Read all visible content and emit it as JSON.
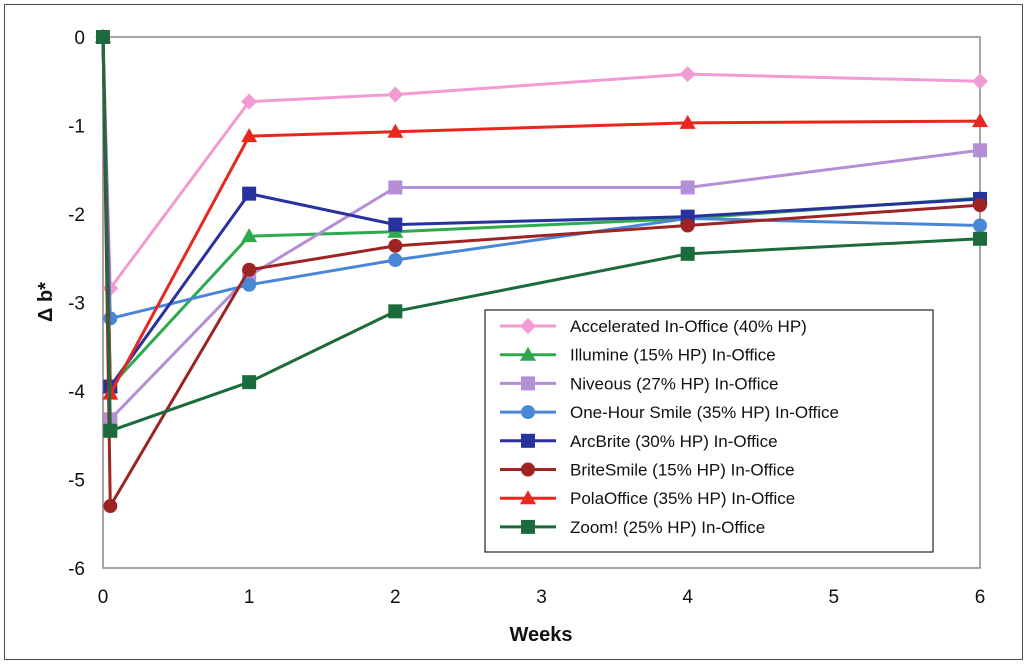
{
  "chart_data": {
    "type": "line",
    "xlabel": "Weeks",
    "ylabel": "Δ b*",
    "ylim": [
      -6,
      0
    ],
    "xlim": [
      0,
      6
    ],
    "x_ticks": [
      "0",
      "1",
      "2",
      "3",
      "4",
      "5",
      "6"
    ],
    "y_ticks": [
      "0",
      "-1",
      "-2",
      "-3",
      "-4",
      "-5",
      "-6"
    ],
    "grid": false,
    "legend_position": "lower-right",
    "series": [
      {
        "name": "Accelerated In-Office (40% HP)",
        "color": "#f29ad2",
        "marker": "diamond",
        "points": [
          [
            0,
            0
          ],
          [
            0.05,
            -2.84
          ],
          [
            1,
            -0.73
          ],
          [
            2,
            -0.65
          ],
          [
            4,
            -0.42
          ],
          [
            6,
            -0.5
          ]
        ]
      },
      {
        "name": "Illumine (15% HP) In-Office",
        "color": "#2eaa4e",
        "marker": "triangle",
        "points": [
          [
            0,
            0
          ],
          [
            0.05,
            -3.95
          ],
          [
            1,
            -2.25
          ],
          [
            2,
            -2.2
          ],
          [
            4,
            -2.05
          ],
          [
            6,
            -1.82
          ]
        ]
      },
      {
        "name": "Niveous (27% HP) In-Office",
        "color": "#b48ed6",
        "marker": "square",
        "points": [
          [
            0,
            0
          ],
          [
            0.05,
            -4.32
          ],
          [
            1,
            -2.7
          ],
          [
            2,
            -1.7
          ],
          [
            4,
            -1.7
          ],
          [
            6,
            -1.28
          ]
        ]
      },
      {
        "name": "One-Hour Smile (35% HP) In-Office",
        "color": "#4a86d6",
        "marker": "circle",
        "points": [
          [
            0,
            0
          ],
          [
            0.05,
            -3.18
          ],
          [
            1,
            -2.8
          ],
          [
            2,
            -2.52
          ],
          [
            4,
            -2.05
          ],
          [
            6,
            -2.13
          ]
        ]
      },
      {
        "name": "ArcBrite (30% HP) In-Office",
        "color": "#28329e",
        "marker": "square",
        "points": [
          [
            0,
            0
          ],
          [
            0.05,
            -3.95
          ],
          [
            1,
            -1.77
          ],
          [
            2,
            -2.12
          ],
          [
            4,
            -2.03
          ],
          [
            6,
            -1.83
          ]
        ]
      },
      {
        "name": "BriteSmile (15% HP) In-Office",
        "color": "#9e2424",
        "marker": "circle",
        "points": [
          [
            0,
            0
          ],
          [
            0.05,
            -5.3
          ],
          [
            1,
            -2.63
          ],
          [
            2,
            -2.36
          ],
          [
            4,
            -2.13
          ],
          [
            6,
            -1.9
          ]
        ]
      },
      {
        "name": "PolaOffice (35% HP) In-Office",
        "color": "#e8271f",
        "marker": "triangle",
        "points": [
          [
            0,
            0
          ],
          [
            0.05,
            -4.03
          ],
          [
            1,
            -1.12
          ],
          [
            2,
            -1.07
          ],
          [
            4,
            -0.97
          ],
          [
            6,
            -0.95
          ]
        ]
      },
      {
        "name": "Zoom! (25% HP) In-Office",
        "color": "#1c6b3c",
        "marker": "square",
        "points": [
          [
            0,
            0
          ],
          [
            0.05,
            -4.45
          ],
          [
            1,
            -3.9
          ],
          [
            2,
            -3.1
          ],
          [
            4,
            -2.45
          ],
          [
            6,
            -2.28
          ]
        ]
      }
    ]
  }
}
